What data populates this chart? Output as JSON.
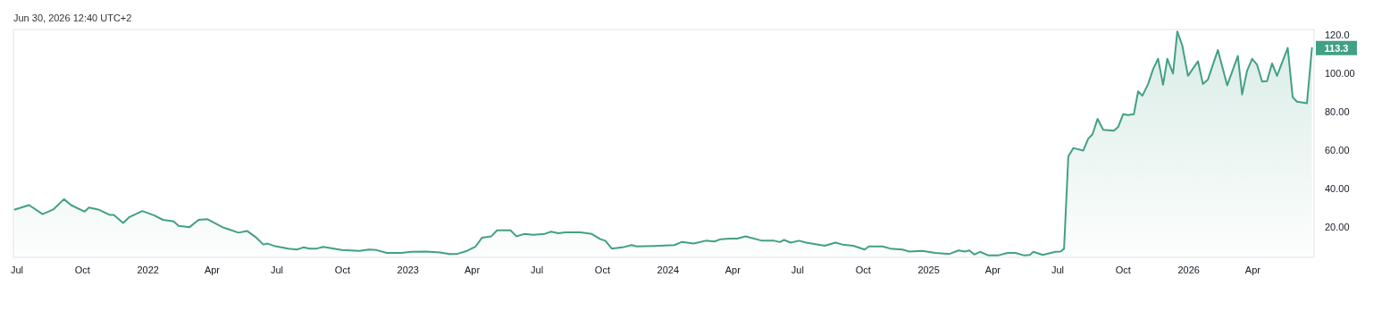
{
  "chart_data": {
    "type": "area",
    "annotations": [
      "Jun 30, 2026 12:40 UTC+2",
      {
        "text": "113.3",
        "x": "2026-06-23",
        "y": 113.3
      }
    ],
    "x": [
      "2021-06-28",
      "2021-07-18",
      "2021-08-06",
      "2021-08-21",
      "2021-09-05",
      "2021-09-15",
      "2021-10-04",
      "2021-10-10",
      "2021-10-23",
      "2021-11-08",
      "2021-11-14",
      "2021-11-27",
      "2021-12-06",
      "2021-12-24",
      "2022-01-10",
      "2022-01-22",
      "2022-02-06",
      "2022-02-13",
      "2022-02-28",
      "2022-03-13",
      "2022-03-25",
      "2022-04-16",
      "2022-05-08",
      "2022-05-20",
      "2022-06-02",
      "2022-06-12",
      "2022-06-18",
      "2022-06-27",
      "2022-07-17",
      "2022-07-29",
      "2022-08-07",
      "2022-08-16",
      "2022-08-26",
      "2022-09-04",
      "2022-09-30",
      "2022-10-25",
      "2022-11-07",
      "2022-11-18",
      "2022-12-02",
      "2022-12-23",
      "2023-01-05",
      "2023-01-26",
      "2023-02-15",
      "2023-02-28",
      "2023-03-11",
      "2023-03-25",
      "2023-04-06",
      "2023-04-15",
      "2023-04-28",
      "2023-05-06",
      "2023-05-25",
      "2023-06-02",
      "2023-06-13",
      "2023-06-26",
      "2023-07-12",
      "2023-07-21",
      "2023-07-31",
      "2023-08-10",
      "2023-08-31",
      "2023-09-16",
      "2023-09-28",
      "2023-10-05",
      "2023-10-14",
      "2023-10-29",
      "2023-11-11",
      "2023-11-18",
      "2023-12-13",
      "2024-01-10",
      "2024-01-20",
      "2024-02-06",
      "2024-02-23",
      "2024-03-06",
      "2024-03-15",
      "2024-03-28",
      "2024-04-07",
      "2024-04-19",
      "2024-05-12",
      "2024-05-29",
      "2024-06-06",
      "2024-06-12",
      "2024-06-21",
      "2024-07-03",
      "2024-07-13",
      "2024-08-08",
      "2024-08-23",
      "2024-09-02",
      "2024-09-17",
      "2024-10-03",
      "2024-10-09",
      "2024-10-28",
      "2024-11-08",
      "2024-11-25",
      "2024-12-05",
      "2024-12-23",
      "2025-01-10",
      "2025-01-30",
      "2025-02-12",
      "2025-02-21",
      "2025-02-27",
      "2025-03-06",
      "2025-03-14",
      "2025-03-26",
      "2025-04-08",
      "2025-04-22",
      "2025-05-03",
      "2025-05-15",
      "2025-05-23",
      "2025-05-28",
      "2025-06-10",
      "2025-06-28",
      "2025-07-05",
      "2025-07-10",
      "2025-07-16",
      "2025-07-23",
      "2025-08-06",
      "2025-08-13",
      "2025-08-19",
      "2025-08-26",
      "2025-09-03",
      "2025-09-18",
      "2025-09-24",
      "2025-10-01",
      "2025-10-08",
      "2025-10-16",
      "2025-10-22",
      "2025-10-28",
      "2025-11-05",
      "2025-11-12",
      "2025-11-19",
      "2025-11-26",
      "2025-12-02",
      "2025-12-10",
      "2025-12-16",
      "2025-12-23",
      "2025-12-31",
      "2026-01-14",
      "2026-01-21",
      "2026-01-28",
      "2026-02-11",
      "2026-02-24",
      "2026-03-11",
      "2026-03-17",
      "2026-03-24",
      "2026-03-31",
      "2026-04-07",
      "2026-04-14",
      "2026-04-21",
      "2026-04-28",
      "2026-05-05",
      "2026-05-20",
      "2026-05-27",
      "2026-06-02",
      "2026-06-16",
      "2026-06-23"
    ],
    "series": [
      {
        "color": "#42a085",
        "values": [
          29.0,
          31.3,
          26.6,
          29.0,
          34.4,
          31.3,
          27.9,
          30.0,
          29.0,
          26.2,
          26.2,
          22.0,
          25.1,
          28.2,
          25.9,
          23.6,
          22.8,
          20.5,
          19.7,
          23.6,
          24.0,
          19.7,
          16.9,
          17.8,
          14.3,
          10.7,
          11.2,
          10.0,
          8.6,
          8.1,
          9.2,
          8.6,
          8.6,
          9.5,
          7.8,
          7.4,
          8.1,
          7.8,
          6.3,
          6.3,
          6.9,
          7.0,
          6.6,
          5.8,
          5.8,
          7.4,
          9.7,
          14.3,
          15.0,
          18.1,
          18.1,
          15.0,
          16.2,
          15.8,
          16.3,
          17.4,
          16.6,
          17.1,
          17.1,
          16.2,
          13.5,
          12.7,
          8.6,
          9.2,
          10.4,
          9.7,
          10.0,
          10.4,
          12.0,
          11.2,
          12.7,
          12.3,
          13.5,
          13.8,
          13.8,
          15.0,
          12.7,
          12.7,
          12.0,
          13.1,
          11.7,
          12.7,
          11.7,
          10.1,
          11.7,
          10.7,
          10.1,
          8.1,
          9.7,
          9.7,
          8.6,
          8.1,
          7.0,
          7.4,
          6.3,
          5.8,
          7.6,
          7.0,
          7.6,
          5.5,
          6.9,
          5.0,
          5.0,
          6.3,
          6.3,
          5.0,
          5.3,
          6.9,
          5.3,
          6.9,
          7.0,
          8.5,
          56.7,
          61.1,
          59.8,
          66.0,
          68.3,
          76.3,
          70.6,
          70.1,
          72.1,
          78.8,
          78.3,
          78.8,
          90.7,
          88.4,
          94.5,
          102.3,
          107.7,
          94.1,
          107.7,
          100.0,
          121.9,
          114.6,
          98.8,
          106.4,
          94.5,
          96.9,
          112.3,
          93.8,
          109.2,
          89.1,
          101.5,
          107.7,
          104.6,
          95.8,
          96.1,
          105.3,
          98.8,
          113.4,
          87.6,
          85.3,
          84.5,
          113.3
        ]
      }
    ],
    "xlim": [
      "2021-06-26",
      "2026-06-26"
    ],
    "xticks": [
      {
        "value": "2021-07-01",
        "label": "Jul"
      },
      {
        "value": "2021-10-01",
        "label": "Oct"
      },
      {
        "value": "2022-01-01",
        "label": "2022"
      },
      {
        "value": "2022-04-01",
        "label": "Apr"
      },
      {
        "value": "2022-07-01",
        "label": "Jul"
      },
      {
        "value": "2022-10-01",
        "label": "Oct"
      },
      {
        "value": "2023-01-01",
        "label": "2023"
      },
      {
        "value": "2023-04-01",
        "label": "Apr"
      },
      {
        "value": "2023-07-01",
        "label": "Jul"
      },
      {
        "value": "2023-10-01",
        "label": "Oct"
      },
      {
        "value": "2024-01-01",
        "label": "2024"
      },
      {
        "value": "2024-04-01",
        "label": "Apr"
      },
      {
        "value": "2024-07-01",
        "label": "Jul"
      },
      {
        "value": "2024-10-01",
        "label": "Oct"
      },
      {
        "value": "2025-01-01",
        "label": "2025"
      },
      {
        "value": "2025-04-01",
        "label": "Apr"
      },
      {
        "value": "2025-07-01",
        "label": "Jul"
      },
      {
        "value": "2025-10-01",
        "label": "Oct"
      },
      {
        "value": "2026-01-01",
        "label": "2026"
      },
      {
        "value": "2026-04-01",
        "label": "Apr"
      }
    ],
    "ylim": [
      4,
      123
    ],
    "yticks": [
      {
        "value": 20,
        "label": "20.00"
      },
      {
        "value": 40,
        "label": "40.00"
      },
      {
        "value": 60,
        "label": "60.00"
      },
      {
        "value": 80,
        "label": "80.00"
      },
      {
        "value": 100,
        "label": "100.00"
      },
      {
        "value": 120,
        "label": "120.0"
      }
    ],
    "grid": false,
    "marker": "none",
    "line_style": "solid"
  }
}
